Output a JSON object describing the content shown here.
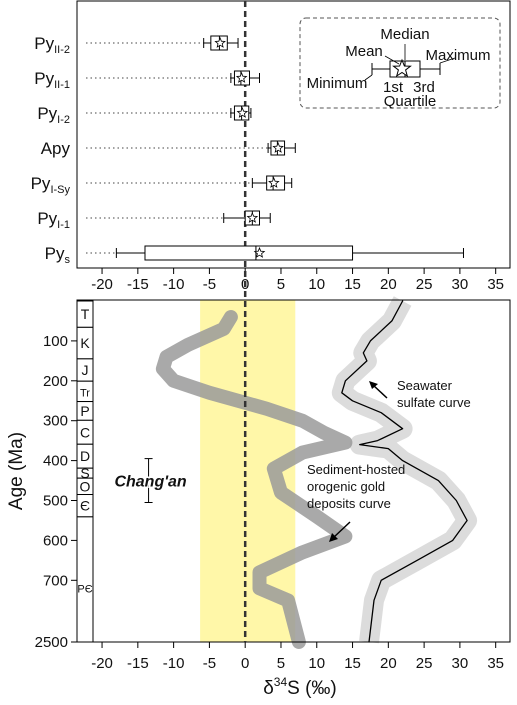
{
  "chart_data": [
    {
      "type": "box",
      "xlim": [
        -23.5,
        37
      ],
      "xticks": [
        -20,
        -15,
        -10,
        -5,
        0,
        5,
        10,
        15,
        20,
        25,
        30,
        35
      ],
      "categories": [
        {
          "base": "Py",
          "sub": "II-2"
        },
        {
          "base": "Py",
          "sub": "II-1"
        },
        {
          "base": "Py",
          "sub": "I-2"
        },
        {
          "base": "Apy",
          "sub": null
        },
        {
          "base": "Py",
          "sub": "I-Sy"
        },
        {
          "base": "Py",
          "sub": "I-1"
        },
        {
          "base": "Py",
          "sub": "s"
        }
      ],
      "boxes": [
        {
          "min": -5.8,
          "q1": -4.8,
          "median": -3.6,
          "mean": -3.5,
          "q3": -2.5,
          "max": -1
        },
        {
          "min": -2,
          "q1": -1.5,
          "median": -0.6,
          "mean": -0.5,
          "q3": 0.6,
          "max": 2
        },
        {
          "min": -2,
          "q1": -1.5,
          "median": -0.5,
          "mean": -0.4,
          "q3": 0.5,
          "max": 0.8
        },
        {
          "min": 3.2,
          "q1": 3.6,
          "median": 4.5,
          "mean": 4.6,
          "q3": 5.5,
          "max": 7
        },
        {
          "min": 1,
          "q1": 3,
          "median": 3.9,
          "mean": 4,
          "q3": 5.5,
          "max": 6.5
        },
        {
          "min": -3,
          "q1": 0,
          "median": 1,
          "mean": 1,
          "q3": 2,
          "max": 3.5
        },
        {
          "min": -18,
          "q1": -14,
          "median": 1.5,
          "mean": 2,
          "q3": 15,
          "max": 30.5
        }
      ],
      "legend": {
        "median": "Median",
        "mean": "Mean",
        "minimum": "Minimum",
        "maximum": "Maximum",
        "first": "1st",
        "third": "3rd",
        "quartile": "Quartile"
      },
      "zero_line": 0
    },
    {
      "type": "line",
      "xlim": [
        -23.5,
        37
      ],
      "xticks": [
        -20,
        -15,
        -10,
        -5,
        0,
        5,
        10,
        15,
        20,
        25,
        30,
        35
      ],
      "ylim": [
        0,
        2500
      ],
      "axis_break": 750,
      "yticks": [
        100,
        200,
        300,
        400,
        500,
        600,
        700,
        2500
      ],
      "y_label": "Age (Ma)",
      "x_label": {
        "pre": "δ",
        "sup": "34",
        "post": "S (‰)"
      },
      "shaded_band": {
        "from": -6.3,
        "to": 7,
        "color": "#fff7a8"
      },
      "series": [
        {
          "color": "#000000",
          "band_color": "#dcdcdc",
          "ages": [
            0,
            50,
            100,
            130,
            150,
            200,
            230,
            250,
            280,
            320,
            350,
            360,
            370,
            400,
            450,
            500,
            550,
            600,
            650,
            700,
            750,
            2500
          ],
          "values": [
            22,
            20.5,
            17.5,
            16.5,
            17,
            14,
            13.5,
            15,
            19,
            22,
            18.5,
            16,
            20,
            22,
            27,
            29.5,
            31,
            29,
            24,
            19,
            18,
            17.3
          ]
        },
        {
          "color": "#9a9a9a",
          "ages": [
            40,
            70,
            110,
            140,
            170,
            200,
            230,
            270,
            300,
            330,
            355,
            380,
            420,
            480,
            540,
            590,
            630,
            680,
            720,
            760,
            2500
          ],
          "values": [
            -2,
            -3,
            -8,
            -11,
            -11.5,
            -10,
            -5,
            3,
            8,
            11,
            14,
            8,
            4,
            5,
            10,
            14,
            8,
            2,
            2,
            6,
            7.5
          ]
        }
      ],
      "annotations": [
        [
          "Seawater",
          "sulfate curve"
        ],
        [
          "Sediment-hosted",
          "orogenic gold",
          "deposits curve"
        ]
      ],
      "periods": [
        {
          "label": "T",
          "from": 0,
          "to": 66
        },
        {
          "label": "K",
          "from": 66,
          "to": 145
        },
        {
          "label": "J",
          "from": 145,
          "to": 201
        },
        {
          "label": "Tr",
          "from": 201,
          "to": 252
        },
        {
          "label": "P",
          "from": 252,
          "to": 299
        },
        {
          "label": "C",
          "from": 299,
          "to": 359
        },
        {
          "label": "D",
          "from": 359,
          "to": 419
        },
        {
          "label": "S",
          "from": 419,
          "to": 444
        },
        {
          "label": "O",
          "from": 444,
          "to": 485
        },
        {
          "label": "Є",
          "from": 485,
          "to": 541
        },
        {
          "label": "PЄ",
          "from": 541,
          "to": 2500
        }
      ],
      "marker": {
        "label": "Chang'an",
        "x": -13.5,
        "age_range": [
          395,
          505
        ]
      }
    }
  ]
}
